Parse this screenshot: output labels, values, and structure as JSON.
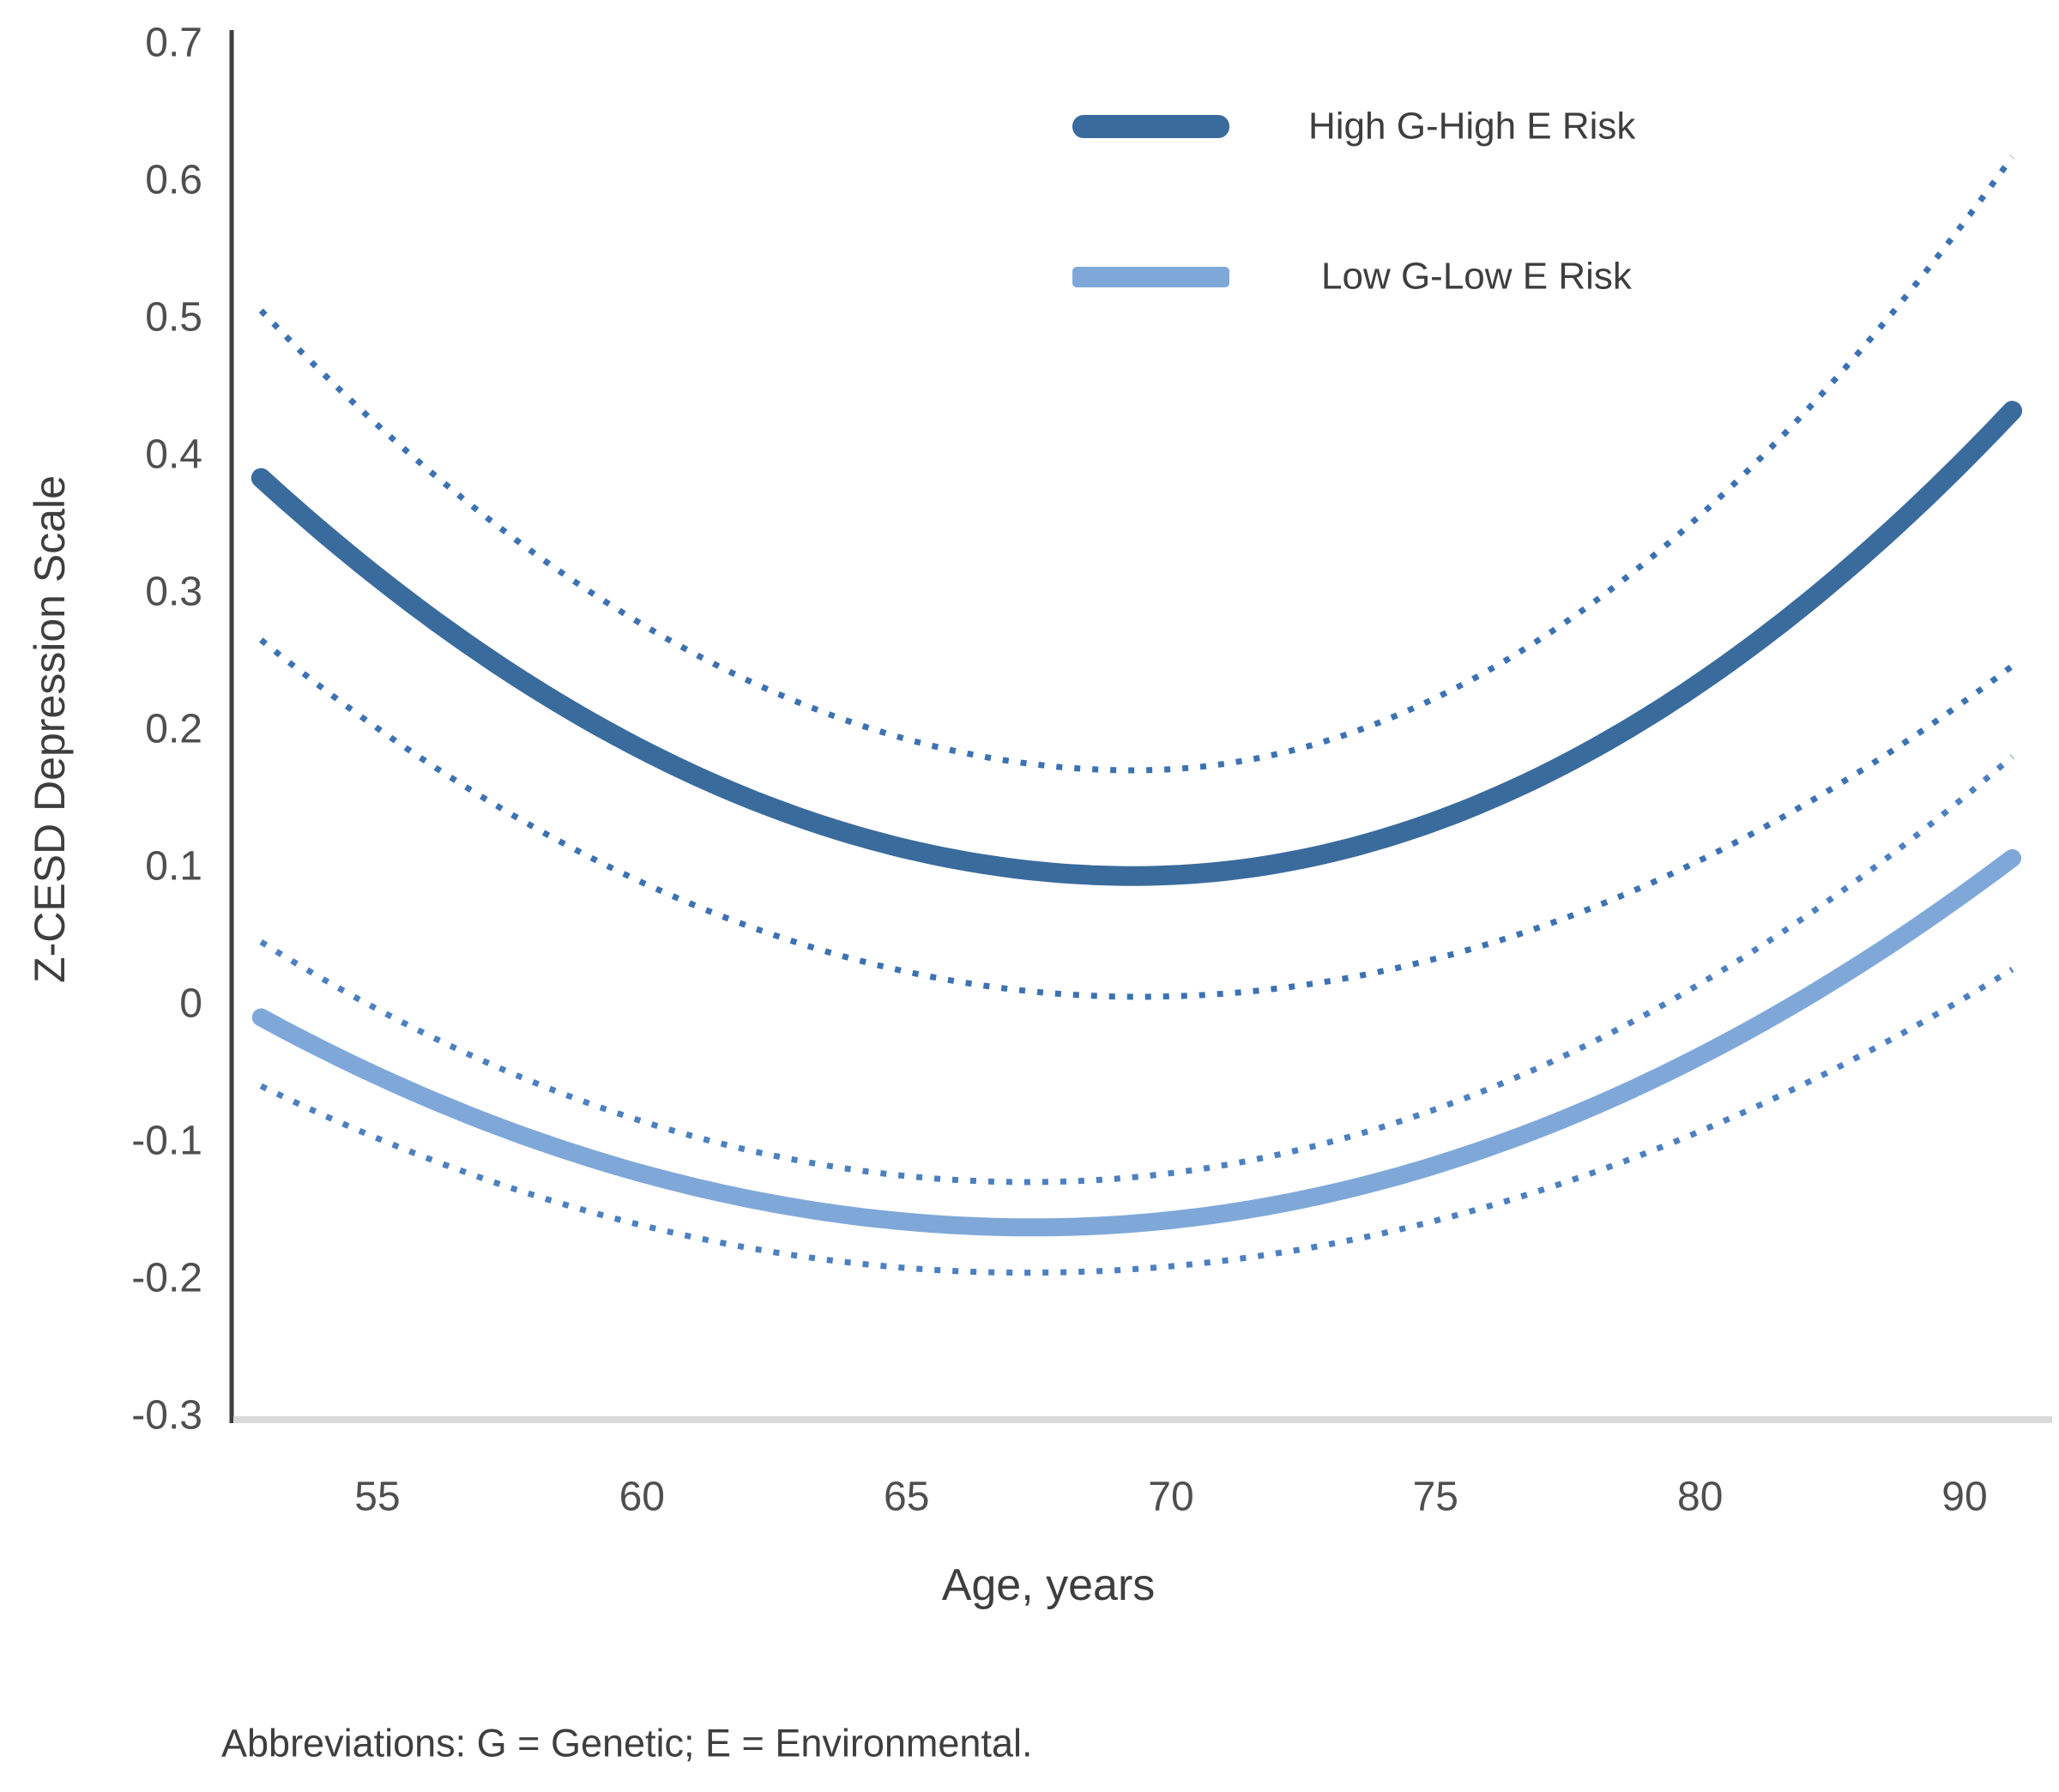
{
  "colors": {
    "background": "#ffffff",
    "dark": "#3a6b9d",
    "light": "#7fa8d9",
    "dots_dark": "#3c72b2",
    "dots_light": "#4d80c0",
    "axis_line": "#3f3f3f",
    "baseline": "#d9d9d9",
    "tick_text": "#4f4f4f",
    "text": "#3e3e3e"
  },
  "legend": {
    "items": [
      {
        "label": "High G-High E Risk",
        "color_key": "dark"
      },
      {
        "label": "Low G-Low E Risk",
        "color_key": "light"
      }
    ]
  },
  "footer": {
    "note": "Abbreviations: G = Genetic; E = Environmental."
  },
  "chart_data": {
    "type": "line",
    "title": "",
    "xlabel": "Age, years",
    "ylabel": "Z-CESD Depression Scale",
    "xlim": [
      52.8,
      91.8
    ],
    "ylim": [
      -0.3,
      0.7
    ],
    "grid": false,
    "legend_position": "top-right-inside",
    "x_ticks": [
      {
        "label": "55",
        "age": 55
      },
      {
        "label": "60",
        "age": 60
      },
      {
        "label": "65",
        "age": 65
      },
      {
        "label": "70",
        "age": 70
      },
      {
        "label": "75",
        "age": 75
      },
      {
        "label": "80",
        "age": 80
      },
      {
        "label": "90",
        "age": 90
      }
    ],
    "y_ticks": [
      {
        "label": "0.7",
        "value": 0.7
      },
      {
        "label": "0.6",
        "value": 0.6
      },
      {
        "label": "0.5",
        "value": 0.5
      },
      {
        "label": "0.4",
        "value": 0.4
      },
      {
        "label": "0.3",
        "value": 0.3
      },
      {
        "label": "0.2",
        "value": 0.2
      },
      {
        "label": "0.1",
        "value": 0.1
      },
      {
        "label": "0",
        "value": 0.0
      },
      {
        "label": "-0.1",
        "value": -0.1
      },
      {
        "label": "-0.2",
        "value": -0.2
      },
      {
        "label": "-0.3",
        "value": -0.3
      }
    ],
    "series": [
      {
        "name": "High G-High E Risk 95% CI upper",
        "role": "ci-upper",
        "group": "High G-High E Risk",
        "style": "dotted",
        "color_key": "dots_dark",
        "stroke_width": 7,
        "start": {
          "age": 52.8,
          "value": 0.505
        },
        "min": {
          "age": 69.3,
          "value": 0.17
        },
        "end": {
          "age": 91.8,
          "value": 0.617
        }
      },
      {
        "name": "High G-High E Risk 95% CI lower",
        "role": "ci-lower",
        "group": "High G-High E Risk",
        "style": "dotted",
        "color_key": "dots_dark",
        "stroke_width": 7,
        "start": {
          "age": 52.8,
          "value": 0.265
        },
        "min": {
          "age": 69.4,
          "value": 0.005
        },
        "end": {
          "age": 91.8,
          "value": 0.246
        }
      },
      {
        "name": "Low G-Low E Risk 95% CI upper",
        "role": "ci-upper",
        "group": "Low G-Low E Risk",
        "style": "dotted",
        "color_key": "dots_light",
        "stroke_width": 7,
        "start": {
          "age": 52.8,
          "value": 0.045
        },
        "min": {
          "age": 67.3,
          "value": -0.13
        },
        "end": {
          "age": 91.8,
          "value": 0.18
        }
      },
      {
        "name": "Low G-Low E Risk 95% CI lower",
        "role": "ci-lower",
        "group": "Low G-Low E Risk",
        "style": "dotted",
        "color_key": "dots_light",
        "stroke_width": 7,
        "start": {
          "age": 52.8,
          "value": -0.06
        },
        "min": {
          "age": 67.3,
          "value": -0.196
        },
        "end": {
          "age": 91.8,
          "value": 0.025
        }
      },
      {
        "name": "High G-High E Risk",
        "role": "mean",
        "group": "High G-High E Risk",
        "style": "solid",
        "color_key": "dark",
        "stroke_width": 23,
        "start": {
          "age": 52.8,
          "value": 0.383
        },
        "min": {
          "age": 69.3,
          "value": 0.093
        },
        "end": {
          "age": 91.8,
          "value": 0.432
        }
      },
      {
        "name": "Low G-Low E Risk",
        "role": "mean",
        "group": "Low G-Low E Risk",
        "style": "solid",
        "color_key": "light",
        "stroke_width": 21,
        "start": {
          "age": 52.8,
          "value": -0.01
        },
        "min": {
          "age": 67.4,
          "value": -0.163
        },
        "end": {
          "age": 91.8,
          "value": 0.106
        }
      }
    ]
  }
}
